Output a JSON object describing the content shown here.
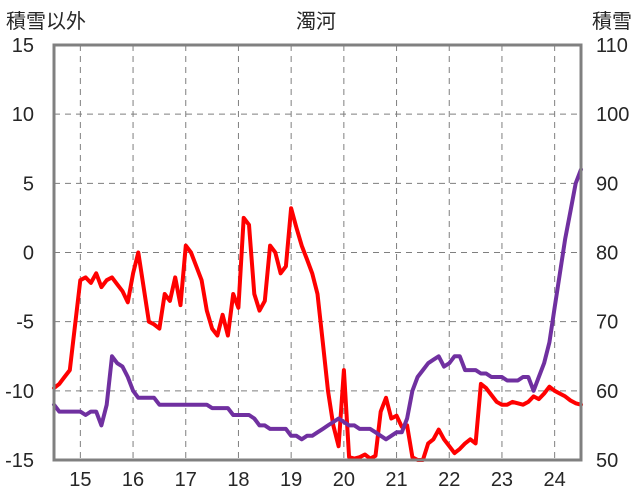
{
  "chart_data": {
    "type": "line",
    "title": "濁河",
    "ylabel_left": "積雪以外",
    "ylabel_right": "積雪",
    "x_ticks": [
      "15",
      "16",
      "17",
      "18",
      "19",
      "20",
      "21",
      "22",
      "23",
      "24"
    ],
    "xlim": [
      14.5,
      24.5
    ],
    "ylim_left": [
      -15,
      15
    ],
    "ylim_right": [
      50,
      110
    ],
    "y_ticks_left": [
      "15",
      "10",
      "5",
      "0",
      "-5",
      "-10",
      "-15"
    ],
    "y_ticks_right": [
      "110",
      "100",
      "90",
      "80",
      "70",
      "60",
      "50"
    ],
    "grid": "dashed",
    "series": [
      {
        "axis": "left",
        "color": "#ff0000",
        "x": [
          14.5,
          14.6,
          14.7,
          14.8,
          15.0,
          15.1,
          15.2,
          15.3,
          15.4,
          15.5,
          15.6,
          15.7,
          15.8,
          15.9,
          16.0,
          16.1,
          16.2,
          16.3,
          16.4,
          16.5,
          16.6,
          16.7,
          16.8,
          16.9,
          17.0,
          17.1,
          17.2,
          17.3,
          17.4,
          17.5,
          17.6,
          17.7,
          17.8,
          17.9,
          18.0,
          18.1,
          18.2,
          18.3,
          18.4,
          18.5,
          18.6,
          18.7,
          18.8,
          18.9,
          19.0,
          19.1,
          19.2,
          19.3,
          19.4,
          19.5,
          19.6,
          19.7,
          19.8,
          19.9,
          20.0,
          20.1,
          20.2,
          20.3,
          20.4,
          20.5,
          20.6,
          20.7,
          20.8,
          20.9,
          21.0,
          21.1,
          21.2,
          21.3,
          21.4,
          21.5,
          21.6,
          21.7,
          21.8,
          21.9,
          22.0,
          22.1,
          22.2,
          22.3,
          22.4,
          22.5,
          22.6,
          22.7,
          22.8,
          22.9,
          23.0,
          23.1,
          23.2,
          23.3,
          23.4,
          23.5,
          23.6,
          23.7,
          23.8,
          23.9,
          24.0,
          24.1,
          24.2,
          24.3,
          24.4,
          24.5
        ],
        "values": [
          -9.8,
          -9.5,
          -9.0,
          -8.5,
          -2.0,
          -1.8,
          -2.2,
          -1.5,
          -2.5,
          -2.0,
          -1.8,
          -2.3,
          -2.8,
          -3.6,
          -1.5,
          0.0,
          -2.5,
          -5.0,
          -5.2,
          -5.5,
          -3.0,
          -3.5,
          -1.8,
          -3.8,
          0.5,
          0.0,
          -1.0,
          -2.0,
          -4.2,
          -5.5,
          -6.0,
          -4.5,
          -6.0,
          -3.0,
          -4.0,
          2.5,
          2.0,
          -3.0,
          -4.2,
          -3.5,
          0.5,
          0.0,
          -1.5,
          -1.0,
          3.2,
          1.8,
          0.5,
          -0.5,
          -1.5,
          -3.0,
          -6.5,
          -10.0,
          -12.5,
          -14.0,
          -8.5,
          -14.8,
          -14.9,
          -14.8,
          -14.6,
          -14.9,
          -14.7,
          -11.5,
          -10.5,
          -12.0,
          -11.8,
          -12.6,
          -12.5,
          -14.8,
          -15.0,
          -15.0,
          -13.8,
          -13.5,
          -12.8,
          -13.5,
          -14.0,
          -14.5,
          -14.2,
          -13.8,
          -13.5,
          -13.8,
          -9.5,
          -9.8,
          -10.3,
          -10.8,
          -11.0,
          -11.0,
          -10.8,
          -10.9,
          -11.0,
          -10.8,
          -10.4,
          -10.6,
          -10.2,
          -9.7,
          -10.0,
          -10.2,
          -10.4,
          -10.7,
          -10.9,
          -11.0
        ]
      },
      {
        "axis": "right",
        "color": "#7030a0",
        "x": [
          14.5,
          14.6,
          14.7,
          14.8,
          15.0,
          15.1,
          15.2,
          15.3,
          15.4,
          15.5,
          15.6,
          15.7,
          15.8,
          15.9,
          16.0,
          16.1,
          16.2,
          16.3,
          16.4,
          16.5,
          16.6,
          16.7,
          16.8,
          16.9,
          17.0,
          17.1,
          17.2,
          17.3,
          17.4,
          17.5,
          17.6,
          17.7,
          17.8,
          17.9,
          18.0,
          18.1,
          18.2,
          18.3,
          18.4,
          18.5,
          18.6,
          18.7,
          18.8,
          18.9,
          19.0,
          19.1,
          19.2,
          19.3,
          19.4,
          19.5,
          19.6,
          19.7,
          19.8,
          19.9,
          20.0,
          20.1,
          20.2,
          20.3,
          20.4,
          20.5,
          20.6,
          20.7,
          20.8,
          20.9,
          21.0,
          21.1,
          21.2,
          21.3,
          21.4,
          21.5,
          21.6,
          21.7,
          21.8,
          21.9,
          22.0,
          22.1,
          22.2,
          22.3,
          22.4,
          22.5,
          22.6,
          22.7,
          22.8,
          22.9,
          23.0,
          23.1,
          23.2,
          23.3,
          23.4,
          23.5,
          23.6,
          23.7,
          23.8,
          23.9,
          24.0,
          24.1,
          24.2,
          24.3,
          24.4,
          24.5
        ],
        "values": [
          58.0,
          57.0,
          57.0,
          57.0,
          57.0,
          56.5,
          57.0,
          57.0,
          55.0,
          58.0,
          65.0,
          64.0,
          63.5,
          62.0,
          60.0,
          59.0,
          59.0,
          59.0,
          59.0,
          58.0,
          58.0,
          58.0,
          58.0,
          58.0,
          58.0,
          58.0,
          58.0,
          58.0,
          58.0,
          57.5,
          57.5,
          57.5,
          57.5,
          56.5,
          56.5,
          56.5,
          56.5,
          56.0,
          55.0,
          55.0,
          54.5,
          54.5,
          54.5,
          54.5,
          53.5,
          53.5,
          53.0,
          53.5,
          53.5,
          54.0,
          54.5,
          55.0,
          55.5,
          56.0,
          55.5,
          55.0,
          55.0,
          54.5,
          54.5,
          54.5,
          54.0,
          53.5,
          53.0,
          53.5,
          54.0,
          54.0,
          56.0,
          60.0,
          62.0,
          63.0,
          64.0,
          64.5,
          65.0,
          63.5,
          64.0,
          65.0,
          65.0,
          63.0,
          63.0,
          63.0,
          62.5,
          62.5,
          62.0,
          62.0,
          62.0,
          61.5,
          61.5,
          61.5,
          62.0,
          62.0,
          60.0,
          62.0,
          64.0,
          67.0,
          72.0,
          77.0,
          82.0,
          86.0,
          90.0,
          92.0
        ]
      }
    ]
  }
}
